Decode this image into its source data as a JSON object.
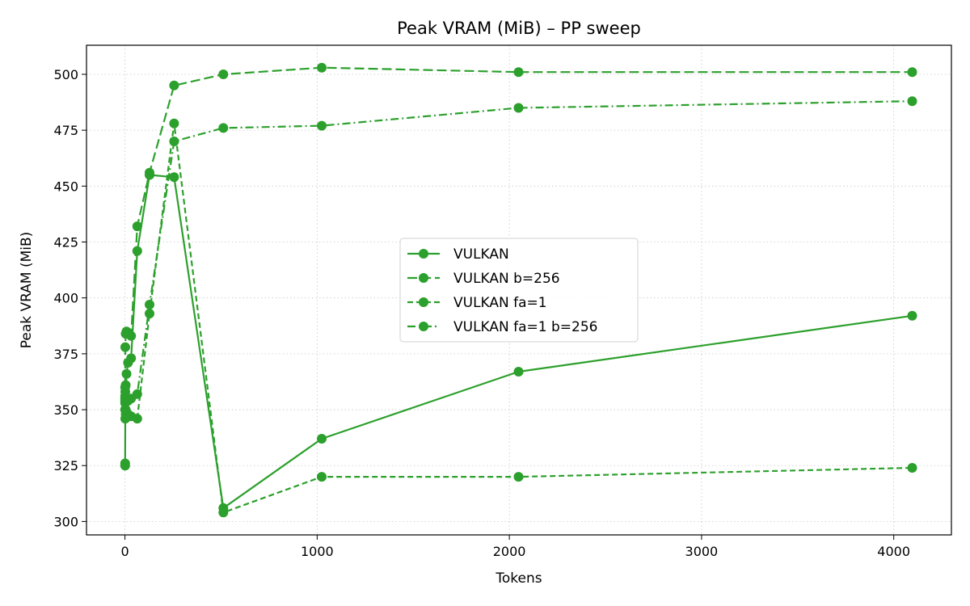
{
  "chart_data": {
    "type": "line",
    "title": "Peak VRAM (MiB) – PP sweep",
    "xlabel": "Tokens",
    "ylabel": "Peak VRAM (MiB)",
    "xlim": [
      -200,
      4300
    ],
    "ylim": [
      294,
      513
    ],
    "xticks": [
      0,
      1000,
      2000,
      3000,
      4000
    ],
    "yticks": [
      300,
      325,
      350,
      375,
      400,
      425,
      450,
      475,
      500
    ],
    "grid": true,
    "legend_position": "center",
    "color": "#2ca02c",
    "series": [
      {
        "name": "VULKAN",
        "line_style": "solid",
        "x": [
          1,
          1,
          2,
          4,
          8,
          16,
          32,
          64,
          128,
          256,
          512,
          1024,
          2048,
          4096
        ],
        "y": [
          325,
          326,
          346,
          350,
          366,
          371,
          373,
          421,
          455,
          454,
          306,
          337,
          367,
          392
        ]
      },
      {
        "name": "VULKAN b=256",
        "line_style": "dashed",
        "x": [
          1,
          1,
          2,
          4,
          8,
          16,
          32,
          64,
          128,
          256,
          512,
          1024,
          2048,
          4096
        ],
        "y": [
          350,
          360,
          378,
          384,
          385,
          384,
          383,
          432,
          456,
          495,
          500,
          503,
          501,
          501
        ]
      },
      {
        "name": "VULKAN fa=1",
        "line_style": "dashed-short",
        "x": [
          1,
          1,
          2,
          4,
          8,
          16,
          32,
          64,
          128,
          256,
          512,
          1024,
          2048,
          4096
        ],
        "y": [
          353,
          355,
          350,
          348,
          347,
          348,
          347,
          346,
          393,
          478,
          304,
          320,
          320,
          324
        ]
      },
      {
        "name": "VULKAN fa=1 b=256",
        "line_style": "dashdot",
        "x": [
          1,
          1,
          2,
          4,
          8,
          16,
          32,
          64,
          128,
          256,
          512,
          1024,
          2048,
          4096
        ],
        "y": [
          354,
          356,
          358,
          361,
          355,
          354,
          355,
          357,
          397,
          470,
          476,
          477,
          485,
          488
        ]
      }
    ]
  }
}
